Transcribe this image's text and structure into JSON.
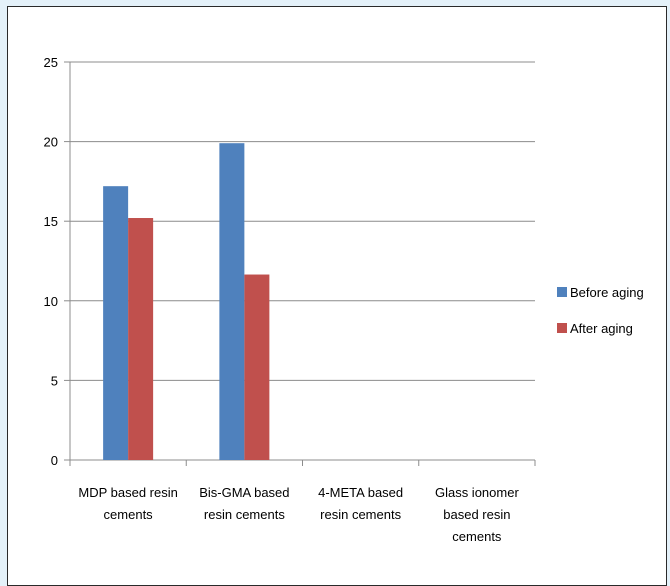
{
  "chart_data": {
    "type": "bar",
    "categories": [
      [
        "MDP based resin",
        "cements"
      ],
      [
        "Bis-GMA based",
        "resin cements"
      ],
      [
        "4-META based",
        "resin cements"
      ],
      [
        "Glass ionomer",
        "based resin",
        "cements"
      ]
    ],
    "series": [
      {
        "name": "Before aging",
        "color": "#4f81bd",
        "values": [
          17.2,
          19.9,
          0,
          0
        ]
      },
      {
        "name": "After aging",
        "color": "#c0504d",
        "values": [
          15.2,
          11.65,
          0,
          0
        ]
      }
    ],
    "ylim": [
      0,
      25
    ],
    "yticks": [
      "0",
      "5",
      "10",
      "15",
      "20",
      "25"
    ],
    "grid": true,
    "legend": "right",
    "title": "",
    "xlabel": "",
    "ylabel": ""
  }
}
